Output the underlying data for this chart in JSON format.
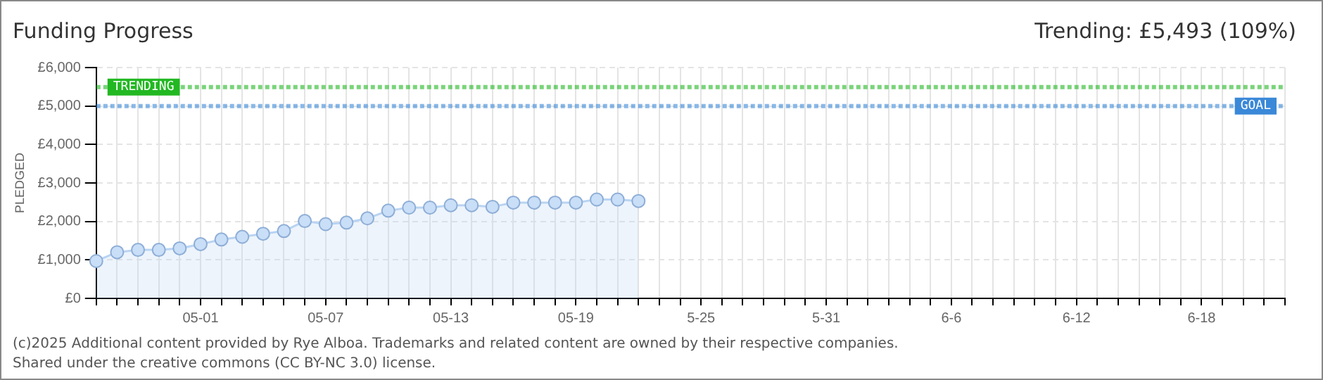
{
  "chart_data": {
    "type": "area",
    "title": "Funding Progress",
    "ylabel": "PLEDGED",
    "annotations": [
      "Trending:  £5,493 (109%)",
      "(c)2025 Additional content provided by Rye Alboa. Trademarks and related content are owned by their respective companies.",
      "Shared under the creative commons (CC BY-NC 3.0) license."
    ],
    "categories": [
      null,
      null,
      null,
      null,
      null,
      "05-01",
      null,
      null,
      null,
      null,
      null,
      "05-07",
      null,
      null,
      null,
      null,
      null,
      "05-13",
      null,
      null,
      null,
      null,
      null,
      "05-19",
      null,
      null,
      null,
      null,
      null,
      "5-25",
      null,
      null,
      null,
      null,
      null,
      "5-31",
      null,
      null,
      null,
      null,
      null,
      "6-6",
      null,
      null,
      null,
      null,
      null,
      "6-12",
      null,
      null,
      null,
      null,
      null,
      "6-18",
      null,
      null,
      null,
      null
    ],
    "series": [
      {
        "color": "#b9d3f2",
        "values": [
          970,
          1200,
          1260,
          1260,
          1300,
          1410,
          1530,
          1600,
          1680,
          1750,
          2010,
          1930,
          1970,
          2080,
          2280,
          2360,
          2360,
          2420,
          2420,
          2380,
          2490,
          2490,
          2490,
          2490,
          2570,
          2570,
          2530,
          null,
          null,
          null,
          null,
          null,
          null,
          null,
          null,
          null,
          null,
          null,
          null,
          null,
          null,
          null,
          null,
          null,
          null,
          null,
          null,
          null,
          null,
          null,
          null,
          null,
          null,
          null,
          null,
          null,
          null,
          null
        ]
      }
    ],
    "ylim": [
      0,
      6000
    ],
    "yticks": [
      {
        "value": 0,
        "label": "£0"
      },
      {
        "value": 1000,
        "label": "£1,000"
      },
      {
        "value": 2000,
        "label": "£2,000"
      },
      {
        "value": 3000,
        "label": "£3,000"
      },
      {
        "value": 4000,
        "label": "£4,000"
      },
      {
        "value": 5000,
        "label": "£5,000"
      },
      {
        "value": 6000,
        "label": "£6,000"
      }
    ],
    "ref_lines": [
      {
        "axis": "y",
        "value": 5493,
        "label": "TRENDING",
        "color": "#22b822",
        "line_style": "dotted"
      },
      {
        "axis": "y",
        "value": 5000,
        "label": "GOAL",
        "color": "#3a88d8",
        "line_style": "dotted"
      }
    ],
    "grid": true,
    "marker": "circle",
    "legend": false
  }
}
